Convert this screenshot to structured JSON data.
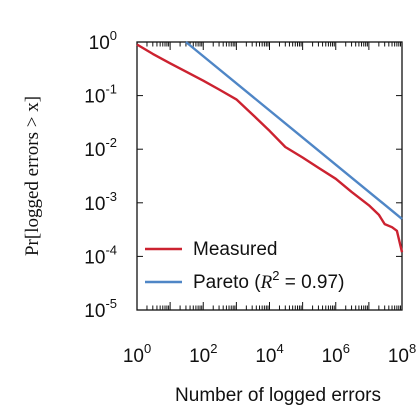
{
  "chart_data": {
    "type": "line",
    "title": "",
    "xlabel": "Number of logged errors",
    "ylabel": "Pr[logged errors > x]",
    "xscale": "log",
    "yscale": "log",
    "xlim": [
      1,
      100000000
    ],
    "ylim": [
      1e-05,
      1
    ],
    "x_ticks": [
      {
        "base": "10",
        "exp": "0",
        "value": 1
      },
      {
        "base": "10",
        "exp": "2",
        "value": 100
      },
      {
        "base": "10",
        "exp": "4",
        "value": 10000
      },
      {
        "base": "10",
        "exp": "6",
        "value": 1000000
      },
      {
        "base": "10",
        "exp": "8",
        "value": 100000000
      }
    ],
    "y_ticks": [
      {
        "base": "10",
        "exp": "0",
        "value": 1
      },
      {
        "base": "10",
        "exp": "-1",
        "value": 0.1
      },
      {
        "base": "10",
        "exp": "-2",
        "value": 0.01
      },
      {
        "base": "10",
        "exp": "-3",
        "value": 0.001
      },
      {
        "base": "10",
        "exp": "-4",
        "value": 0.0001
      },
      {
        "base": "10",
        "exp": "-5",
        "value": 1e-05
      }
    ],
    "grid": false,
    "legend_position": "bottom-left",
    "series": [
      {
        "name": "Measured",
        "color": "#cc2230",
        "x": [
          1,
          3,
          10,
          30,
          100,
          300,
          1000,
          3000,
          10000,
          30000,
          100000,
          300000,
          1000000,
          3000000,
          10000000,
          20000000,
          30000000,
          50000000,
          70000000,
          100000000
        ],
        "y": [
          0.9,
          0.6,
          0.4,
          0.28,
          0.19,
          0.13,
          0.085,
          0.045,
          0.022,
          0.011,
          0.007,
          0.0045,
          0.0028,
          0.0016,
          0.0009,
          0.0006,
          0.0004,
          0.00035,
          0.0003,
          0.00012
        ]
      },
      {
        "name": "Pareto (R² = 0.97)",
        "legend_label": "Pareto (",
        "legend_r": "R",
        "legend_sup": "2",
        "legend_rest": " = 0.97)",
        "color": "#4f86c6",
        "x": [
          30,
          100000000
        ],
        "y": [
          1,
          0.0005
        ]
      }
    ]
  }
}
